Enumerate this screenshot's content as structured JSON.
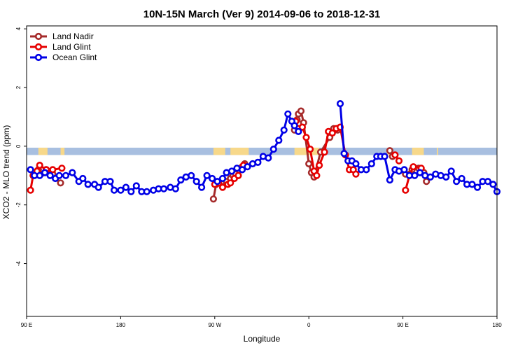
{
  "chart_data": {
    "type": "line",
    "title": "10N-15N March (Ver 9)   2014-09-06 to 2018-12-31",
    "xlabel": "Longitude",
    "ylabel": "XCO2 - MLO trend (ppm)",
    "xlim": [
      0,
      360
    ],
    "ylim": [
      -5.8,
      4.1
    ],
    "x_ticks": [
      {
        "value": 0,
        "label": "90 E"
      },
      {
        "value": 72,
        "label": "180"
      },
      {
        "value": 144,
        "label": "90 W"
      },
      {
        "value": 216,
        "label": "0"
      },
      {
        "value": 288,
        "label": "90 E"
      },
      {
        "value": 360,
        "label": "180"
      }
    ],
    "y_ticks": [
      {
        "value": 4,
        "label": "4"
      },
      {
        "value": 2,
        "label": "2"
      },
      {
        "value": 0,
        "label": "0"
      },
      {
        "value": -2,
        "label": "-2"
      },
      {
        "value": -4,
        "label": "-4"
      }
    ],
    "legend_position": "top-left",
    "land_band": {
      "y_top": -0.05,
      "y_bottom": -0.3,
      "color": "#a8bfe0",
      "land_color": "#f7d88a"
    },
    "land_segments": [
      [
        9,
        16
      ],
      [
        26,
        29
      ],
      [
        143,
        152
      ],
      [
        156,
        170
      ],
      [
        205,
        224
      ],
      [
        276,
        280
      ],
      [
        295,
        304
      ],
      [
        314,
        315
      ]
    ],
    "series": [
      {
        "name": "Land Nadir",
        "color": "#a52a2a",
        "segments": [
          {
            "x": [
              9,
              11,
              15,
              20,
              26
            ],
            "y": [
              -0.8,
              -0.95,
              -0.8,
              -0.95,
              -1.25
            ]
          },
          {
            "x": [
              143,
              145,
              150,
              153,
              156,
              158,
              160,
              162,
              165,
              167
            ],
            "y": [
              -1.8,
              -1.3,
              -1.2,
              -1.2,
              -1.1,
              -1.0,
              -0.95,
              -1.0,
              -0.7,
              -0.6
            ]
          },
          {
            "x": [
              205,
              207,
              208,
              210,
              212,
              216,
              218,
              220,
              225,
              232,
              235,
              238
            ],
            "y": [
              0.55,
              0.9,
              1.1,
              1.2,
              0.8,
              -0.6,
              -0.9,
              -1.05,
              -0.2,
              0.3,
              0.6,
              0.55
            ]
          },
          {
            "x": [
              278,
              280
            ],
            "y": [
              -0.15,
              -0.35
            ]
          },
          {
            "x": [
              290,
              295,
              300,
              304,
              306
            ],
            "y": [
              -0.95,
              -0.8,
              -0.75,
              -0.9,
              -1.2
            ]
          }
        ]
      },
      {
        "name": "Land Glint",
        "color": "#e60000",
        "segments": [
          {
            "x": [
              3,
              5,
              8,
              10,
              15,
              20,
              27
            ],
            "y": [
              -1.5,
              -1.0,
              -0.85,
              -0.65,
              -0.8,
              -0.8,
              -0.75
            ]
          },
          {
            "x": [
              144,
              147,
              150,
              154,
              156,
              159,
              162,
              166
            ],
            "y": [
              -1.3,
              -1.25,
              -1.4,
              -1.3,
              -1.25,
              -1.1,
              -1.0,
              -0.65
            ]
          },
          {
            "x": [
              206,
              208,
              211,
              214,
              217,
              220,
              222,
              224,
              228,
              231,
              234,
              237,
              240,
              244,
              247
            ],
            "y": [
              0.85,
              0.6,
              0.65,
              0.3,
              -0.1,
              -0.85,
              -1.0,
              -0.65,
              -0.2,
              0.5,
              0.45,
              0.6,
              0.65,
              -0.3,
              -0.8
            ]
          },
          {
            "x": [
              250,
              252
            ],
            "y": [
              -0.8,
              -0.95
            ]
          },
          {
            "x": [
              282,
              285
            ],
            "y": [
              -0.3,
              -0.5
            ]
          },
          {
            "x": [
              290,
              293,
              296,
              302
            ],
            "y": [
              -1.5,
              -1.0,
              -0.7,
              -0.75
            ]
          }
        ]
      },
      {
        "name": "Ocean Glint",
        "color": "#0000e6",
        "segments": [
          {
            "x": [
              3,
              6,
              10,
              14,
              18,
              22,
              25,
              30,
              35,
              40,
              43,
              47,
              52,
              55,
              60,
              64,
              67,
              72,
              76,
              80,
              84,
              88,
              92,
              97,
              101,
              105,
              110,
              114,
              118,
              122,
              126,
              130,
              134,
              138,
              142,
              146,
              150,
              153,
              157,
              161,
              165,
              169,
              173,
              177,
              181,
              185,
              189,
              193,
              197,
              200,
              203,
              205,
              208
            ],
            "y": [
              -0.8,
              -1.0,
              -1.0,
              -0.9,
              -1.0,
              -1.1,
              -1.0,
              -1.0,
              -0.9,
              -1.2,
              -1.1,
              -1.3,
              -1.3,
              -1.4,
              -1.2,
              -1.2,
              -1.5,
              -1.5,
              -1.4,
              -1.55,
              -1.35,
              -1.55,
              -1.55,
              -1.5,
              -1.45,
              -1.45,
              -1.4,
              -1.45,
              -1.15,
              -1.05,
              -1.0,
              -1.2,
              -1.4,
              -1.0,
              -1.1,
              -1.2,
              -1.1,
              -0.9,
              -0.85,
              -0.75,
              -0.8,
              -0.7,
              -0.6,
              -0.55,
              -0.35,
              -0.4,
              -0.1,
              0.2,
              0.55,
              1.1,
              0.85,
              0.7,
              0.5
            ]
          },
          {
            "x": [
              240,
              243,
              246,
              249,
              252,
              256,
              260,
              264,
              268,
              271,
              274,
              278,
              282,
              285,
              289,
              293,
              297,
              301,
              305,
              309,
              313,
              317,
              321,
              325,
              329,
              333,
              337,
              341,
              345,
              349,
              353,
              357,
              360
            ],
            "y": [
              1.45,
              -0.25,
              -0.5,
              -0.5,
              -0.6,
              -0.8,
              -0.8,
              -0.6,
              -0.35,
              -0.35,
              -0.35,
              -1.15,
              -0.8,
              -0.85,
              -0.8,
              -1.0,
              -1.0,
              -0.9,
              -1.0,
              -1.05,
              -0.95,
              -1.0,
              -1.05,
              -0.85,
              -1.2,
              -1.1,
              -1.3,
              -1.3,
              -1.4,
              -1.2,
              -1.2,
              -1.3,
              -1.55
            ]
          }
        ]
      }
    ]
  }
}
